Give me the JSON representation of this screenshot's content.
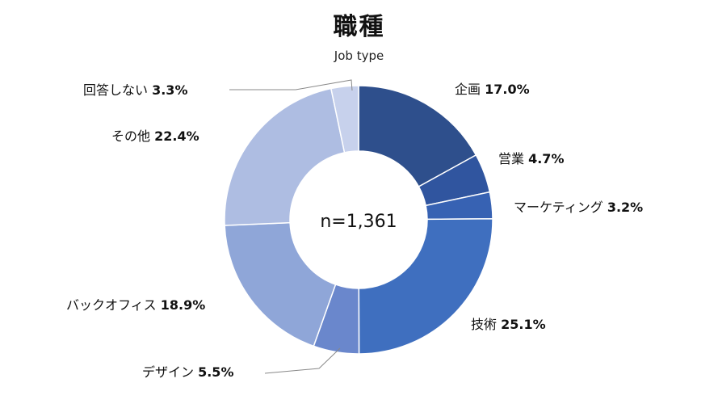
{
  "chart_data": {
    "type": "pie",
    "title": "職種",
    "subtitle": "Job type",
    "center_label": "n=1,361",
    "categories": [
      "企画",
      "営業",
      "マーケティング",
      "技術",
      "デザイン",
      "バックオフィス",
      "その他",
      "回答しない"
    ],
    "values": [
      17.0,
      4.7,
      3.2,
      25.1,
      5.5,
      18.9,
      22.4,
      3.3
    ],
    "value_labels": [
      "17.0%",
      "4.7%",
      "3.2%",
      "25.1%",
      "5.5%",
      "18.9%",
      "22.4%",
      "3.3%"
    ],
    "colors": [
      "#2e4f8c",
      "#30559f",
      "#3762b3",
      "#3f6fbf",
      "#6a87cc",
      "#8fa6d8",
      "#aebde2",
      "#c7d1ec"
    ]
  }
}
